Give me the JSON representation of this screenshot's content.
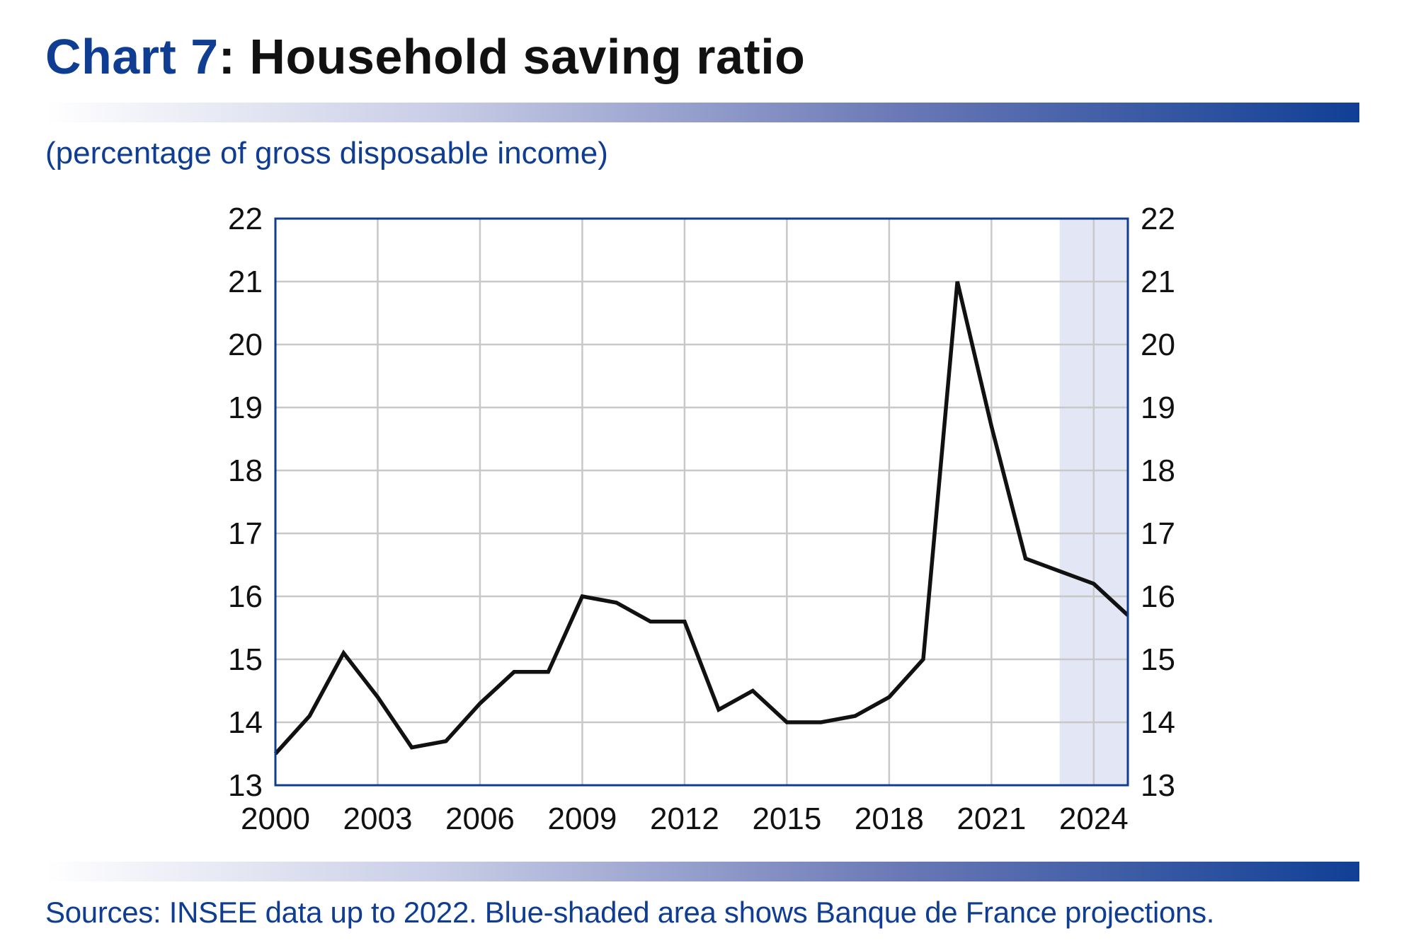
{
  "header": {
    "title_prefix": "Chart 7",
    "title_rest": ": Household saving ratio",
    "subtitle": "(percentage of gross disposable income)"
  },
  "footer": {
    "source": "Sources: INSEE data up to 2022. Blue-shaded area shows Banque de France projections."
  },
  "colors": {
    "accent": "#0f3d91",
    "line": "#111111",
    "grid": "#c8c8c8",
    "projection_shade": "#e3e6f4",
    "frame": "#0f3d91"
  },
  "chart_data": {
    "type": "line",
    "x": [
      2000,
      2001,
      2002,
      2003,
      2004,
      2005,
      2006,
      2007,
      2008,
      2009,
      2010,
      2011,
      2012,
      2013,
      2014,
      2015,
      2016,
      2017,
      2018,
      2019,
      2020,
      2021,
      2022,
      2023,
      2024,
      2025
    ],
    "series": [
      {
        "values": [
          13.5,
          14.1,
          15.1,
          14.4,
          13.6,
          13.7,
          14.3,
          14.8,
          14.8,
          16.0,
          15.9,
          15.6,
          15.6,
          14.2,
          14.5,
          14.0,
          14.0,
          14.1,
          14.4,
          15.0,
          21.0,
          18.7,
          16.6,
          16.4,
          16.2,
          15.7
        ]
      }
    ],
    "xlim": [
      2000,
      2025
    ],
    "ylim": [
      13,
      22
    ],
    "x_ticks": [
      "2000",
      "2003",
      "2006",
      "2009",
      "2012",
      "2015",
      "2018",
      "2021",
      "2024"
    ],
    "y_ticks": [
      "13",
      "14",
      "15",
      "16",
      "17",
      "18",
      "19",
      "20",
      "21",
      "22"
    ],
    "projection_start": 2023,
    "grid": true,
    "legend": "none"
  }
}
